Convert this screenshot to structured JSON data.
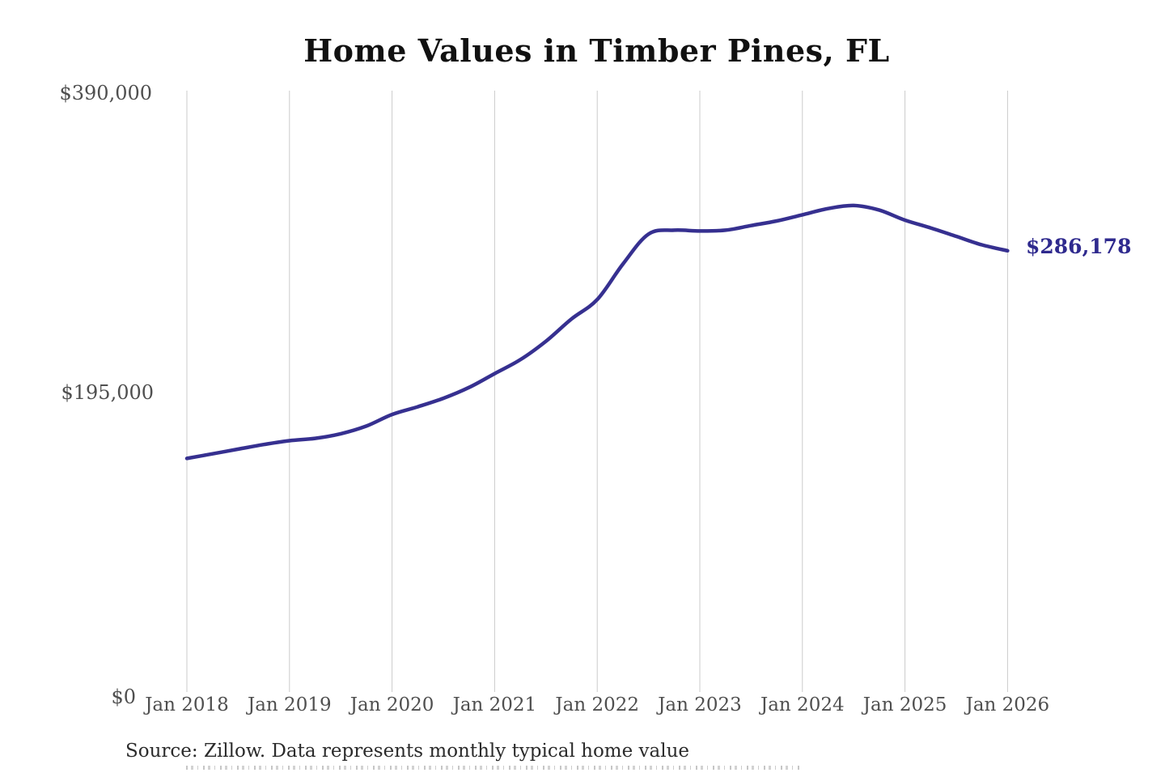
{
  "title": "Home Values in Timber Pines, FL",
  "annotation": {
    "end_value_label": "$286,178"
  },
  "footer": {
    "source_text": "Source: Zillow. Data represents monthly typical home value"
  },
  "colors": {
    "line": "#363090",
    "end_label": "#2f2a8e",
    "gridline": "#cbcbcb",
    "axis_label": "#4f4f4f",
    "title": "#111111",
    "source": "#2b2b2b",
    "background": "#ffffff"
  },
  "chart_data": {
    "type": "line",
    "title": "Home Values in Timber Pines, FL",
    "xlabel": "",
    "ylabel": "",
    "ylim": [
      0,
      390000
    ],
    "y_ticks": [
      0,
      195000,
      390000
    ],
    "y_tick_labels": [
      "$0",
      "$195,000",
      "$390,000"
    ],
    "x_tick_labels": [
      "Jan 2018",
      "Jan 2019",
      "Jan 2020",
      "Jan 2021",
      "Jan 2022",
      "Jan 2023",
      "Jan 2024",
      "Jan 2025",
      "Jan 2026"
    ],
    "grid": "vertical-only",
    "legend": "none",
    "end_annotation": "$286,178",
    "final_value": 286178,
    "points": [
      {
        "month": "2018-01",
        "value": 151500
      },
      {
        "month": "2018-04",
        "value": 154500
      },
      {
        "month": "2018-07",
        "value": 157500
      },
      {
        "month": "2018-10",
        "value": 160500
      },
      {
        "month": "2019-01",
        "value": 163000
      },
      {
        "month": "2019-04",
        "value": 164500
      },
      {
        "month": "2019-07",
        "value": 167500
      },
      {
        "month": "2019-10",
        "value": 172500
      },
      {
        "month": "2020-01",
        "value": 180000
      },
      {
        "month": "2020-04",
        "value": 185000
      },
      {
        "month": "2020-07",
        "value": 190500
      },
      {
        "month": "2020-10",
        "value": 197500
      },
      {
        "month": "2021-01",
        "value": 206500
      },
      {
        "month": "2021-04",
        "value": 215500
      },
      {
        "month": "2021-07",
        "value": 227500
      },
      {
        "month": "2021-10",
        "value": 242000
      },
      {
        "month": "2022-01",
        "value": 254500
      },
      {
        "month": "2022-04",
        "value": 277500
      },
      {
        "month": "2022-07",
        "value": 297000
      },
      {
        "month": "2022-10",
        "value": 299500
      },
      {
        "month": "2023-01",
        "value": 299000
      },
      {
        "month": "2023-04",
        "value": 299500
      },
      {
        "month": "2023-07",
        "value": 302500
      },
      {
        "month": "2023-10",
        "value": 305500
      },
      {
        "month": "2024-01",
        "value": 309500
      },
      {
        "month": "2024-04",
        "value": 313500
      },
      {
        "month": "2024-07",
        "value": 315500
      },
      {
        "month": "2024-10",
        "value": 312500
      },
      {
        "month": "2025-01",
        "value": 306000
      },
      {
        "month": "2025-04",
        "value": 301000
      },
      {
        "month": "2025-07",
        "value": 295500
      },
      {
        "month": "2025-10",
        "value": 290000
      },
      {
        "month": "2026-01",
        "value": 286178
      }
    ]
  }
}
